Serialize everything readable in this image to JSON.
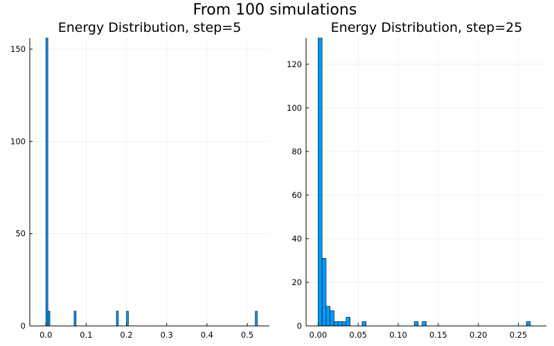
{
  "figure_title": "From 100 simulations",
  "colors": {
    "bar": "#009af9",
    "bar_edge": "#000000"
  },
  "chart_data": [
    {
      "type": "bar",
      "title": "Energy Distribution, step=5",
      "xlabel": "",
      "ylabel": "",
      "xlim": [
        -0.04,
        0.555
      ],
      "ylim": [
        0,
        156
      ],
      "xticks": [
        0.0,
        0.1,
        0.2,
        0.3,
        0.4,
        0.5
      ],
      "xtick_labels": [
        "0.0",
        "0.1",
        "0.2",
        "0.3",
        "0.4",
        "0.5"
      ],
      "yticks": [
        0,
        50,
        100,
        150
      ],
      "ytick_labels": [
        "0",
        "50",
        "100",
        "150"
      ],
      "grid": true,
      "legend": "none",
      "bin_width": 0.005,
      "bins": [
        {
          "x0": 0.0,
          "value": 156
        },
        {
          "x0": 0.005,
          "value": 8
        },
        {
          "x0": 0.07,
          "value": 8
        },
        {
          "x0": 0.175,
          "value": 8
        },
        {
          "x0": 0.2,
          "value": 8
        },
        {
          "x0": 0.52,
          "value": 8
        }
      ]
    },
    {
      "type": "bar",
      "title": "Energy Distribution, step=25",
      "xlabel": "",
      "ylabel": "",
      "xlim": [
        -0.015,
        0.285
      ],
      "ylim": [
        0,
        132
      ],
      "xticks": [
        0.0,
        0.05,
        0.1,
        0.15,
        0.2,
        0.25
      ],
      "xtick_labels": [
        "0.00",
        "0.05",
        "0.10",
        "0.15",
        "0.20",
        "0.25"
      ],
      "yticks": [
        0,
        20,
        40,
        60,
        80,
        100,
        120
      ],
      "ytick_labels": [
        "0",
        "20",
        "40",
        "60",
        "80",
        "100",
        "120"
      ],
      "grid": true,
      "legend": "none",
      "bin_width": 0.005,
      "bins": [
        {
          "x0": 0.0,
          "value": 132
        },
        {
          "x0": 0.005,
          "value": 31
        },
        {
          "x0": 0.01,
          "value": 9
        },
        {
          "x0": 0.015,
          "value": 7
        },
        {
          "x0": 0.02,
          "value": 2
        },
        {
          "x0": 0.025,
          "value": 2
        },
        {
          "x0": 0.03,
          "value": 2
        },
        {
          "x0": 0.035,
          "value": 4
        },
        {
          "x0": 0.055,
          "value": 2
        },
        {
          "x0": 0.12,
          "value": 2
        },
        {
          "x0": 0.13,
          "value": 2
        },
        {
          "x0": 0.26,
          "value": 2
        }
      ]
    }
  ]
}
